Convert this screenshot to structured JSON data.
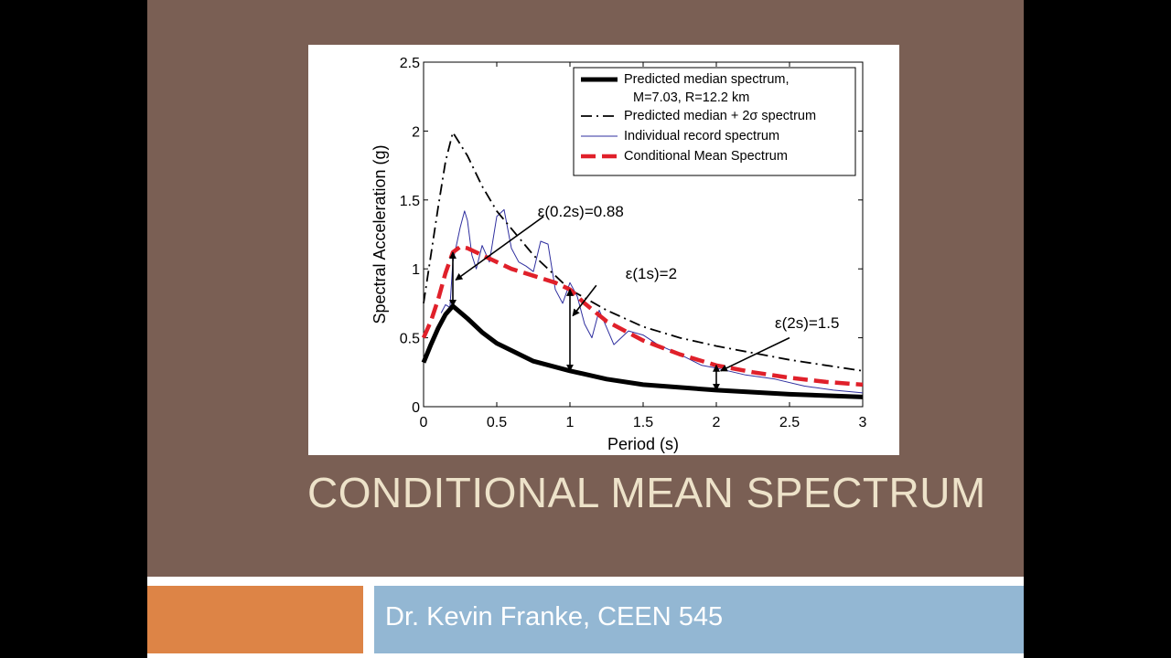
{
  "slide": {
    "title": "CONDITIONAL MEAN SPECTRUM",
    "subtitle": "Dr. Kevin Franke, CEEN 545",
    "colors": {
      "background": "#7a5f54",
      "title": "#ede2c9",
      "orange_bar": "#dd8446",
      "blue_bar": "#93b7d3"
    }
  },
  "chart_data": {
    "type": "line",
    "xlabel": "Period (s)",
    "ylabel": "Spectral Acceleration (g)",
    "xlim": [
      0,
      3
    ],
    "ylim": [
      0,
      2.5
    ],
    "xticks": [
      "0",
      "0.5",
      "1",
      "1.5",
      "2",
      "2.5",
      "3"
    ],
    "yticks": [
      "0",
      "0.5",
      "1",
      "1.5",
      "2",
      "2.5"
    ],
    "grid": false,
    "legend_position": "top-right",
    "legend": [
      {
        "label": "Predicted median spectrum,",
        "label2": "M=7.03, R=12.2 km",
        "style": "solid-thick",
        "color": "#000000"
      },
      {
        "label": "Predicted median + 2σ spectrum",
        "style": "dash-dot",
        "color": "#000000"
      },
      {
        "label": "Individual record spectrum",
        "style": "solid-thin",
        "color": "#2f2f9f"
      },
      {
        "label": "Conditional Mean Spectrum",
        "style": "dashed-thick",
        "color": "#e0202a"
      }
    ],
    "series": [
      {
        "name": "Predicted median spectrum",
        "x": [
          0,
          0.05,
          0.1,
          0.15,
          0.2,
          0.3,
          0.4,
          0.5,
          0.75,
          1.0,
          1.25,
          1.5,
          1.75,
          2.0,
          2.5,
          3.0
        ],
        "y": [
          0.32,
          0.45,
          0.57,
          0.67,
          0.73,
          0.64,
          0.54,
          0.46,
          0.33,
          0.26,
          0.2,
          0.16,
          0.14,
          0.12,
          0.09,
          0.07
        ]
      },
      {
        "name": "Predicted median + 2σ spectrum",
        "x": [
          0,
          0.05,
          0.1,
          0.15,
          0.2,
          0.3,
          0.4,
          0.5,
          0.75,
          1.0,
          1.25,
          1.5,
          1.75,
          2.0,
          2.25,
          2.5,
          2.75,
          3.0
        ],
        "y": [
          0.75,
          1.1,
          1.45,
          1.78,
          1.99,
          1.82,
          1.6,
          1.42,
          1.1,
          0.85,
          0.7,
          0.58,
          0.5,
          0.44,
          0.39,
          0.34,
          0.3,
          0.26
        ]
      },
      {
        "name": "Individual record spectrum",
        "x": [
          0.12,
          0.15,
          0.18,
          0.2,
          0.22,
          0.25,
          0.28,
          0.3,
          0.33,
          0.36,
          0.4,
          0.45,
          0.5,
          0.55,
          0.6,
          0.65,
          0.7,
          0.75,
          0.8,
          0.85,
          0.9,
          0.95,
          1.0,
          1.05,
          1.1,
          1.15,
          1.2,
          1.3,
          1.4,
          1.5,
          1.6,
          1.75,
          1.9,
          2.0,
          2.2,
          2.4,
          2.6,
          2.8,
          3.0
        ],
        "y": [
          0.68,
          0.74,
          0.72,
          1.05,
          1.15,
          1.3,
          1.42,
          1.35,
          1.1,
          1.0,
          1.17,
          1.05,
          1.38,
          1.43,
          1.15,
          1.05,
          1.02,
          0.98,
          1.2,
          1.18,
          0.85,
          0.75,
          0.9,
          0.8,
          0.6,
          0.5,
          0.7,
          0.45,
          0.55,
          0.52,
          0.45,
          0.38,
          0.3,
          0.28,
          0.23,
          0.2,
          0.15,
          0.12,
          0.1
        ]
      },
      {
        "name": "Conditional Mean Spectrum",
        "x": [
          0,
          0.05,
          0.1,
          0.15,
          0.2,
          0.25,
          0.3,
          0.4,
          0.5,
          0.6,
          0.75,
          0.9,
          1.0,
          1.1,
          1.25,
          1.5,
          1.75,
          2.0,
          2.25,
          2.5,
          2.75,
          3.0
        ],
        "y": [
          0.5,
          0.62,
          0.78,
          0.97,
          1.12,
          1.16,
          1.15,
          1.1,
          1.05,
          1.0,
          0.95,
          0.9,
          0.85,
          0.75,
          0.62,
          0.48,
          0.38,
          0.3,
          0.25,
          0.21,
          0.18,
          0.16
        ]
      }
    ],
    "annotations": [
      {
        "text": "ε(0.2s)=0.88"
      },
      {
        "text": "ε(1s)=2"
      },
      {
        "text": "ε(2s)=1.5"
      }
    ]
  }
}
